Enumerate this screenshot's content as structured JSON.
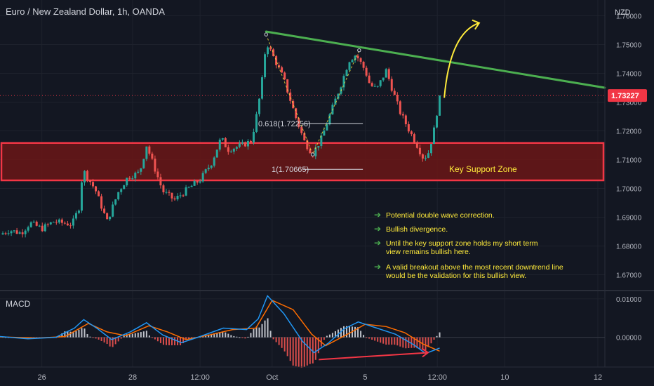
{
  "header": {
    "title": "Euro / New Zealand Dollar, 1h, OANDA",
    "currency": "NZD"
  },
  "colors": {
    "background": "#131722",
    "bull": "#26a69a",
    "bear": "#ef5350",
    "zone_fill": "#6b1616",
    "zone_border": "#f23645",
    "trendline": "#4caf50",
    "arrow": "#ffeb3b",
    "note_text": "#ffeb3b",
    "note_bullet": "#4caf50",
    "price_tag": "#f23645",
    "macd_line": "#2196f3",
    "signal_line": "#ff6d00"
  },
  "annotations": {
    "fib_618": "0.618(1.72256)",
    "fib_1": "1(1.70665)",
    "zone_label": "Key Support Zone",
    "notes": [
      {
        "lines": [
          "Potential double wave correction."
        ]
      },
      {
        "lines": [
          "Bullish divergence."
        ]
      },
      {
        "lines": [
          "Until the key support zone holds my short term",
          "view remains bullish here."
        ]
      },
      {
        "lines": [
          "A valid breakout above the most recent downtrend line",
          "would be the validation for this bullish view."
        ]
      }
    ]
  },
  "chart_data": {
    "type": "candlestick",
    "title": "Euro / New Zealand Dollar, 1h, OANDA",
    "ylabel": "NZD",
    "ylim": [
      1.665,
      1.7606
    ],
    "y_ticks": [
      "1.67000",
      "1.68000",
      "1.69000",
      "1.70000",
      "1.71000",
      "1.72000",
      "1.73000",
      "1.74000",
      "1.75000",
      "1.76000"
    ],
    "x_tick_labels": [
      "26",
      "28",
      "12:00",
      "Oct",
      "5",
      "12:00",
      "10",
      "12"
    ],
    "last_price": "1.73227",
    "close_path": [
      {
        "t": 0,
        "v": 1.684
      },
      {
        "t": 0.2,
        "v": 1.6855
      },
      {
        "t": 0.45,
        "v": 1.6845
      },
      {
        "t": 0.65,
        "v": 1.688
      },
      {
        "t": 0.9,
        "v": 1.686
      },
      {
        "t": 1.15,
        "v": 1.6885
      },
      {
        "t": 1.55,
        "v": 1.6875
      },
      {
        "t": 1.7,
        "v": 1.6935
      },
      {
        "t": 1.78,
        "v": 1.7065
      },
      {
        "t": 2.05,
        "v": 1.6995
      },
      {
        "t": 2.3,
        "v": 1.6885
      },
      {
        "t": 2.55,
        "v": 1.699
      },
      {
        "t": 2.75,
        "v": 1.704
      },
      {
        "t": 3.0,
        "v": 1.7055
      },
      {
        "t": 3.15,
        "v": 1.715
      },
      {
        "t": 3.5,
        "v": 1.699
      },
      {
        "t": 3.75,
        "v": 1.696
      },
      {
        "t": 4.05,
        "v": 1.7
      },
      {
        "t": 4.3,
        "v": 1.703
      },
      {
        "t": 4.55,
        "v": 1.709
      },
      {
        "t": 4.75,
        "v": 1.7175
      },
      {
        "t": 4.9,
        "v": 1.7135
      },
      {
        "t": 5.2,
        "v": 1.715
      },
      {
        "t": 5.4,
        "v": 1.7165
      },
      {
        "t": 5.5,
        "v": 1.724
      },
      {
        "t": 5.62,
        "v": 1.7355
      },
      {
        "t": 5.72,
        "v": 1.751
      },
      {
        "t": 5.78,
        "v": 1.749
      },
      {
        "t": 6.1,
        "v": 1.738
      },
      {
        "t": 6.35,
        "v": 1.725
      },
      {
        "t": 6.55,
        "v": 1.716
      },
      {
        "t": 6.72,
        "v": 1.712
      },
      {
        "t": 6.9,
        "v": 1.717
      },
      {
        "t": 7.1,
        "v": 1.726
      },
      {
        "t": 7.35,
        "v": 1.737
      },
      {
        "t": 7.5,
        "v": 1.7445
      },
      {
        "t": 7.65,
        "v": 1.7465
      },
      {
        "t": 7.85,
        "v": 1.741
      },
      {
        "t": 7.95,
        "v": 1.736
      },
      {
        "t": 8.1,
        "v": 1.7345
      },
      {
        "t": 8.3,
        "v": 1.741
      },
      {
        "t": 8.45,
        "v": 1.7335
      },
      {
        "t": 8.6,
        "v": 1.7265
      },
      {
        "t": 8.8,
        "v": 1.72
      },
      {
        "t": 8.95,
        "v": 1.7155
      },
      {
        "t": 9.1,
        "v": 1.7105
      },
      {
        "t": 9.2,
        "v": 1.712
      },
      {
        "t": 9.32,
        "v": 1.7195
      },
      {
        "t": 9.45,
        "v": 1.7323
      }
    ],
    "support_zone": [
      1.7028,
      1.7158
    ],
    "fib_levels": [
      {
        "label": "0.618(1.72256)",
        "value": 1.72256
      },
      {
        "label": "1(1.70665)",
        "value": 1.70665
      }
    ],
    "trendline": [
      {
        "t": 5.72,
        "v": 1.7545
      },
      {
        "t": 13.0,
        "v": 1.735
      }
    ],
    "macd": {
      "label": "MACD",
      "y_ticks": [
        "0.01000",
        "0.00000"
      ],
      "ylim": [
        -0.0072,
        0.0118
      ],
      "macd_path": [
        {
          "t": 0,
          "v": 0.0002
        },
        {
          "t": 0.6,
          "v": -0.0004
        },
        {
          "t": 1.2,
          "v": 0.0
        },
        {
          "t": 1.6,
          "v": 0.0024
        },
        {
          "t": 1.8,
          "v": 0.0046
        },
        {
          "t": 2.1,
          "v": 0.0022
        },
        {
          "t": 2.4,
          "v": -0.0006
        },
        {
          "t": 2.8,
          "v": 0.0014
        },
        {
          "t": 3.15,
          "v": 0.0038
        },
        {
          "t": 3.5,
          "v": 0.0006
        },
        {
          "t": 3.9,
          "v": -0.0014
        },
        {
          "t": 4.3,
          "v": 0.0002
        },
        {
          "t": 4.8,
          "v": 0.0024
        },
        {
          "t": 5.3,
          "v": 0.002
        },
        {
          "t": 5.55,
          "v": 0.0048
        },
        {
          "t": 5.75,
          "v": 0.0108
        },
        {
          "t": 6.1,
          "v": 0.0062
        },
        {
          "t": 6.5,
          "v": -0.001
        },
        {
          "t": 6.75,
          "v": -0.004
        },
        {
          "t": 7.05,
          "v": -0.0016
        },
        {
          "t": 7.4,
          "v": 0.0022
        },
        {
          "t": 7.7,
          "v": 0.004
        },
        {
          "t": 8.1,
          "v": 0.0024
        },
        {
          "t": 8.5,
          "v": 0.0008
        },
        {
          "t": 8.9,
          "v": -0.002
        },
        {
          "t": 9.15,
          "v": -0.0042
        },
        {
          "t": 9.45,
          "v": -0.0028
        }
      ],
      "signal_path": [
        {
          "t": 0,
          "v": 0.0001
        },
        {
          "t": 0.8,
          "v": -0.0002
        },
        {
          "t": 1.4,
          "v": 0.0002
        },
        {
          "t": 1.9,
          "v": 0.0036
        },
        {
          "t": 2.3,
          "v": 0.0014
        },
        {
          "t": 2.7,
          "v": 0.0004
        },
        {
          "t": 3.2,
          "v": 0.003
        },
        {
          "t": 3.6,
          "v": 0.0014
        },
        {
          "t": 4.0,
          "v": -0.0006
        },
        {
          "t": 4.5,
          "v": 0.0006
        },
        {
          "t": 5.0,
          "v": 0.002
        },
        {
          "t": 5.5,
          "v": 0.0024
        },
        {
          "t": 5.85,
          "v": 0.0096
        },
        {
          "t": 6.3,
          "v": 0.0072
        },
        {
          "t": 6.7,
          "v": 0.0008
        },
        {
          "t": 7.0,
          "v": -0.0022
        },
        {
          "t": 7.5,
          "v": 0.001
        },
        {
          "t": 7.85,
          "v": 0.0034
        },
        {
          "t": 8.3,
          "v": 0.0028
        },
        {
          "t": 8.7,
          "v": 0.0012
        },
        {
          "t": 9.1,
          "v": -0.0018
        },
        {
          "t": 9.45,
          "v": -0.0036
        }
      ],
      "divergence_arrow": [
        {
          "t": 6.85,
          "v": -0.0058
        },
        {
          "t": 9.2,
          "v": -0.004
        }
      ]
    }
  }
}
